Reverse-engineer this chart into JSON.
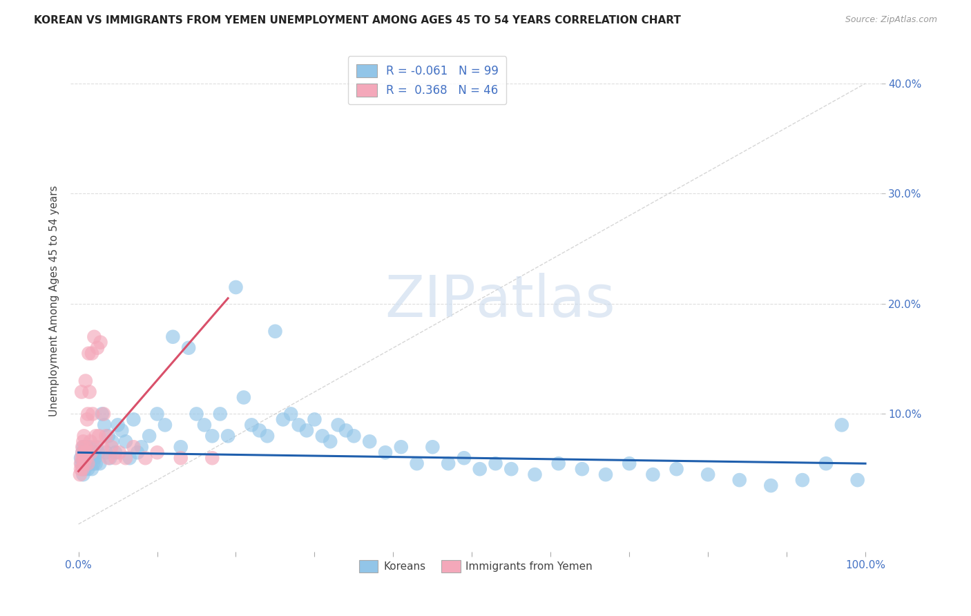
{
  "title": "KOREAN VS IMMIGRANTS FROM YEMEN UNEMPLOYMENT AMONG AGES 45 TO 54 YEARS CORRELATION CHART",
  "source": "Source: ZipAtlas.com",
  "ylabel": "Unemployment Among Ages 45 to 54 years",
  "xlim": [
    -0.01,
    1.02
  ],
  "ylim": [
    -0.025,
    0.43
  ],
  "xticks": [
    0.0,
    0.1,
    0.2,
    0.3,
    0.4,
    0.5,
    0.6,
    0.7,
    0.8,
    0.9,
    1.0
  ],
  "xticklabels": [
    "0.0%",
    "",
    "",
    "",
    "",
    "",
    "",
    "",
    "",
    "",
    "100.0%"
  ],
  "yticks_right": [
    0.1,
    0.2,
    0.3,
    0.4
  ],
  "yticklabels_right": [
    "10.0%",
    "20.0%",
    "30.0%",
    "40.0%"
  ],
  "korean_color": "#92C5E8",
  "yemen_color": "#F4A8BA",
  "korean_line_color": "#1F5FAD",
  "yemen_line_color": "#D9506A",
  "diag_color": "#CCCCCC",
  "legend_R_korean": "-0.061",
  "legend_N_korean": "99",
  "legend_R_yemen": "0.368",
  "legend_N_yemen": "46",
  "legend_label_korean": "Koreans",
  "legend_label_yemen": "Immigrants from Yemen",
  "watermark_zip": "ZIP",
  "watermark_atlas": "atlas",
  "background_color": "#FFFFFF",
  "korean_x": [
    0.003,
    0.004,
    0.005,
    0.005,
    0.006,
    0.006,
    0.007,
    0.007,
    0.008,
    0.008,
    0.009,
    0.009,
    0.01,
    0.01,
    0.01,
    0.011,
    0.011,
    0.012,
    0.012,
    0.013,
    0.013,
    0.014,
    0.015,
    0.015,
    0.016,
    0.017,
    0.018,
    0.019,
    0.02,
    0.021,
    0.022,
    0.023,
    0.025,
    0.027,
    0.03,
    0.033,
    0.035,
    0.038,
    0.04,
    0.043,
    0.047,
    0.05,
    0.055,
    0.06,
    0.065,
    0.07,
    0.075,
    0.08,
    0.09,
    0.1,
    0.11,
    0.12,
    0.13,
    0.14,
    0.15,
    0.16,
    0.17,
    0.18,
    0.19,
    0.2,
    0.21,
    0.22,
    0.23,
    0.24,
    0.25,
    0.26,
    0.27,
    0.28,
    0.29,
    0.3,
    0.31,
    0.32,
    0.33,
    0.34,
    0.35,
    0.37,
    0.39,
    0.41,
    0.43,
    0.45,
    0.47,
    0.49,
    0.51,
    0.53,
    0.55,
    0.58,
    0.61,
    0.64,
    0.67,
    0.7,
    0.73,
    0.76,
    0.8,
    0.84,
    0.88,
    0.92,
    0.95,
    0.97,
    0.99
  ],
  "korean_y": [
    0.06,
    0.055,
    0.065,
    0.05,
    0.07,
    0.045,
    0.055,
    0.06,
    0.05,
    0.065,
    0.06,
    0.055,
    0.065,
    0.055,
    0.07,
    0.06,
    0.055,
    0.065,
    0.05,
    0.06,
    0.055,
    0.07,
    0.06,
    0.055,
    0.065,
    0.05,
    0.06,
    0.055,
    0.065,
    0.06,
    0.055,
    0.07,
    0.065,
    0.055,
    0.1,
    0.09,
    0.065,
    0.08,
    0.06,
    0.075,
    0.065,
    0.09,
    0.085,
    0.075,
    0.06,
    0.095,
    0.065,
    0.07,
    0.08,
    0.1,
    0.09,
    0.17,
    0.07,
    0.16,
    0.1,
    0.09,
    0.08,
    0.1,
    0.08,
    0.215,
    0.115,
    0.09,
    0.085,
    0.08,
    0.175,
    0.095,
    0.1,
    0.09,
    0.085,
    0.095,
    0.08,
    0.075,
    0.09,
    0.085,
    0.08,
    0.075,
    0.065,
    0.07,
    0.055,
    0.07,
    0.055,
    0.06,
    0.05,
    0.055,
    0.05,
    0.045,
    0.055,
    0.05,
    0.045,
    0.055,
    0.045,
    0.05,
    0.045,
    0.04,
    0.035,
    0.04,
    0.055,
    0.09,
    0.04
  ],
  "yemen_x": [
    0.002,
    0.003,
    0.003,
    0.004,
    0.004,
    0.005,
    0.005,
    0.005,
    0.006,
    0.006,
    0.007,
    0.007,
    0.008,
    0.008,
    0.009,
    0.009,
    0.01,
    0.01,
    0.011,
    0.012,
    0.012,
    0.013,
    0.014,
    0.015,
    0.016,
    0.017,
    0.018,
    0.019,
    0.02,
    0.022,
    0.024,
    0.026,
    0.028,
    0.03,
    0.032,
    0.035,
    0.038,
    0.042,
    0.047,
    0.052,
    0.06,
    0.07,
    0.085,
    0.1,
    0.13,
    0.17
  ],
  "yemen_y": [
    0.045,
    0.055,
    0.05,
    0.12,
    0.06,
    0.065,
    0.07,
    0.05,
    0.06,
    0.075,
    0.055,
    0.08,
    0.06,
    0.065,
    0.07,
    0.13,
    0.06,
    0.065,
    0.095,
    0.1,
    0.055,
    0.155,
    0.12,
    0.075,
    0.065,
    0.155,
    0.1,
    0.07,
    0.17,
    0.08,
    0.16,
    0.08,
    0.165,
    0.07,
    0.1,
    0.08,
    0.06,
    0.07,
    0.06,
    0.065,
    0.06,
    0.07,
    0.06,
    0.065,
    0.06,
    0.06
  ],
  "korean_trendline_x": [
    0.0,
    1.0
  ],
  "korean_trendline_y": [
    0.065,
    0.055
  ],
  "yemen_trendline_x": [
    0.0,
    0.19
  ],
  "yemen_trendline_y": [
    0.048,
    0.205
  ]
}
